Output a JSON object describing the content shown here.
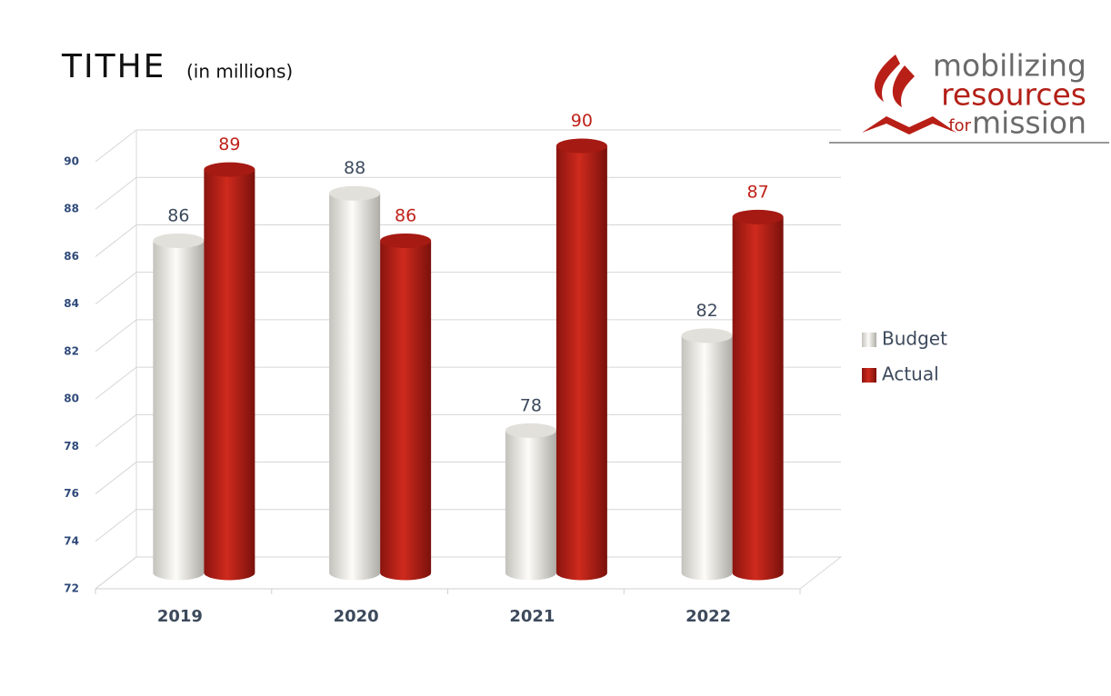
{
  "chart_data": {
    "type": "bar",
    "title": "TITHE",
    "subtitle": "(in millions)",
    "categories": [
      "2019",
      "2020",
      "2021",
      "2022"
    ],
    "series": [
      {
        "name": "Budget",
        "color": "#e8e6e0",
        "label_color": "#3d4a5c",
        "values": [
          86,
          88,
          78,
          82
        ]
      },
      {
        "name": "Actual",
        "color": "#b81f16",
        "label_color": "#c0221a",
        "values": [
          89,
          86,
          90,
          87
        ]
      }
    ],
    "ylim": [
      72,
      90
    ],
    "yticks": [
      72,
      74,
      76,
      78,
      80,
      82,
      84,
      86,
      88,
      90
    ],
    "grid": true,
    "legend": "right"
  },
  "logo": {
    "line1": "mobilizing",
    "line2": "resources",
    "small": "for",
    "line3": "mission"
  }
}
